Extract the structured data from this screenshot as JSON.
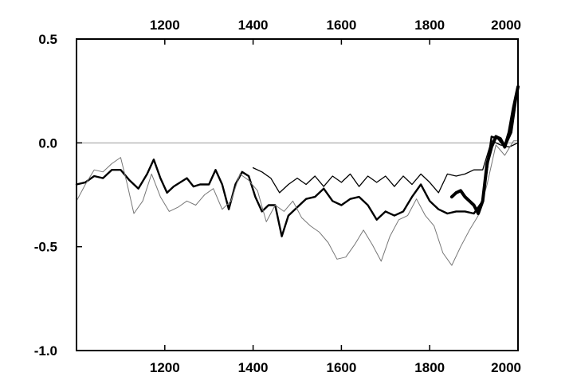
{
  "chart_data": {
    "type": "line",
    "title": "",
    "xlabel": "",
    "ylabel": "",
    "xlim": [
      1000,
      2000
    ],
    "ylim": [
      -1.0,
      0.5
    ],
    "x_ticks": [
      1200,
      1400,
      1600,
      1800,
      2000
    ],
    "x_tick_labels": [
      "1200",
      "1400",
      "1600",
      "1800",
      "2000"
    ],
    "y_ticks": [
      0.5,
      0.0,
      -0.5,
      -1.0
    ],
    "y_tick_labels": [
      "0.5",
      "0.0",
      "-0.5",
      "-1.0"
    ],
    "grid": false,
    "zero_line": 0.0,
    "series": [
      {
        "style": "medium-black",
        "color": "#000000",
        "x": [
          1000,
          1020,
          1040,
          1060,
          1080,
          1100,
          1120,
          1140,
          1160,
          1175,
          1190,
          1205,
          1220,
          1235,
          1250,
          1265,
          1280,
          1300,
          1315,
          1330,
          1345,
          1360,
          1375,
          1390,
          1405,
          1420,
          1435,
          1450,
          1465,
          1480,
          1500,
          1520,
          1540,
          1560,
          1580,
          1600,
          1620,
          1640,
          1660,
          1680,
          1700,
          1720,
          1740,
          1760,
          1780,
          1800,
          1820,
          1840,
          1860,
          1880,
          1900,
          1920,
          1940,
          1955,
          1970,
          1985,
          2000
        ],
        "y": [
          -0.2,
          -0.19,
          -0.16,
          -0.17,
          -0.13,
          -0.13,
          -0.18,
          -0.22,
          -0.15,
          -0.08,
          -0.17,
          -0.24,
          -0.21,
          -0.19,
          -0.17,
          -0.21,
          -0.2,
          -0.2,
          -0.13,
          -0.2,
          -0.32,
          -0.2,
          -0.14,
          -0.16,
          -0.26,
          -0.33,
          -0.3,
          -0.3,
          -0.45,
          -0.35,
          -0.31,
          -0.27,
          -0.26,
          -0.22,
          -0.28,
          -0.3,
          -0.27,
          -0.26,
          -0.3,
          -0.37,
          -0.33,
          -0.35,
          -0.33,
          -0.26,
          -0.2,
          -0.28,
          -0.32,
          -0.34,
          -0.33,
          -0.33,
          -0.34,
          -0.28,
          0.03,
          0.02,
          -0.02,
          0.05,
          0.27
        ]
      },
      {
        "style": "thin-black",
        "color": "#000000",
        "x": [
          1400,
          1420,
          1440,
          1460,
          1480,
          1500,
          1520,
          1540,
          1560,
          1580,
          1600,
          1620,
          1640,
          1660,
          1680,
          1700,
          1720,
          1740,
          1760,
          1780,
          1800,
          1820,
          1840,
          1860,
          1880,
          1900,
          1920,
          1940,
          1960,
          1980,
          2000
        ],
        "y": [
          -0.12,
          -0.14,
          -0.17,
          -0.24,
          -0.2,
          -0.17,
          -0.2,
          -0.16,
          -0.21,
          -0.16,
          -0.19,
          -0.15,
          -0.21,
          -0.16,
          -0.19,
          -0.16,
          -0.21,
          -0.16,
          -0.2,
          -0.15,
          -0.19,
          -0.24,
          -0.15,
          -0.16,
          -0.15,
          -0.13,
          -0.13,
          0.01,
          -0.01,
          -0.02,
          0.0
        ]
      },
      {
        "style": "light-gray",
        "color": "#777777",
        "x": [
          1000,
          1020,
          1040,
          1060,
          1080,
          1100,
          1115,
          1130,
          1150,
          1170,
          1190,
          1210,
          1230,
          1250,
          1270,
          1290,
          1310,
          1330,
          1350,
          1370,
          1390,
          1410,
          1430,
          1450,
          1470,
          1490,
          1510,
          1530,
          1550,
          1570,
          1590,
          1610,
          1630,
          1650,
          1670,
          1690,
          1710,
          1730,
          1750,
          1770,
          1790,
          1810,
          1830,
          1850,
          1870,
          1890,
          1910,
          1930,
          1950,
          1970,
          1990,
          2000
        ],
        "y": [
          -0.28,
          -0.2,
          -0.13,
          -0.14,
          -0.1,
          -0.07,
          -0.2,
          -0.34,
          -0.28,
          -0.15,
          -0.26,
          -0.33,
          -0.31,
          -0.28,
          -0.3,
          -0.25,
          -0.22,
          -0.32,
          -0.28,
          -0.15,
          -0.18,
          -0.23,
          -0.38,
          -0.3,
          -0.33,
          -0.28,
          -0.36,
          -0.4,
          -0.43,
          -0.48,
          -0.56,
          -0.55,
          -0.49,
          -0.42,
          -0.49,
          -0.57,
          -0.45,
          -0.37,
          -0.35,
          -0.27,
          -0.35,
          -0.4,
          -0.53,
          -0.59,
          -0.5,
          -0.42,
          -0.35,
          -0.2,
          -0.01,
          -0.06,
          0.01,
          0.01
        ]
      },
      {
        "style": "heavy-black",
        "color": "#000000",
        "x": [
          1850,
          1860,
          1870,
          1880,
          1890,
          1900,
          1910,
          1920,
          1930,
          1940,
          1950,
          1960,
          1970,
          1980,
          1990,
          2000
        ],
        "y": [
          -0.26,
          -0.24,
          -0.23,
          -0.26,
          -0.28,
          -0.3,
          -0.34,
          -0.28,
          -0.1,
          -0.02,
          0.03,
          0.02,
          -0.02,
          0.05,
          0.17,
          0.27
        ]
      }
    ]
  }
}
